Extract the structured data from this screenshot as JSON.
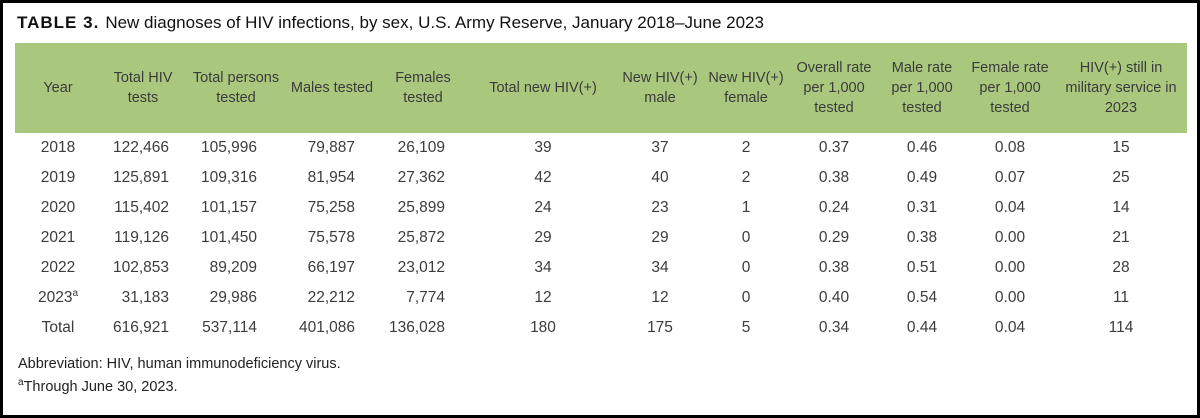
{
  "title": {
    "label": "TABLE 3.",
    "text": "New diagnoses of HIV infections, by sex, U.S. Army Reserve, January 2018–June 2023"
  },
  "colors": {
    "header_bg": "#a9c87e",
    "page_border": "#000000",
    "body_text": "#3c3c3c"
  },
  "table": {
    "columns": [
      "Year",
      "Total HIV tests",
      "Total persons tested",
      "Males tested",
      "Females tested",
      "Total new HIV(+)",
      "New HIV(+) male",
      "New HIV(+) female",
      "Overall rate per 1,000 tested",
      "Male rate per 1,000 tested",
      "Female rate per 1,000 tested",
      "HIV(+) still in military service in 2023"
    ],
    "rows": [
      {
        "cells": [
          "2018",
          "122,466",
          "105,996",
          "79,887",
          "26,109",
          "39",
          "37",
          "2",
          "0.37",
          "0.46",
          "0.08",
          "15"
        ]
      },
      {
        "cells": [
          "2019",
          "125,891",
          "109,316",
          "81,954",
          "27,362",
          "42",
          "40",
          "2",
          "0.38",
          "0.49",
          "0.07",
          "25"
        ]
      },
      {
        "cells": [
          "2020",
          "115,402",
          "101,157",
          "75,258",
          "25,899",
          "24",
          "23",
          "1",
          "0.24",
          "0.31",
          "0.04",
          "14"
        ]
      },
      {
        "cells": [
          "2021",
          "119,126",
          "101,450",
          "75,578",
          "25,872",
          "29",
          "29",
          "0",
          "0.29",
          "0.38",
          "0.00",
          "21"
        ]
      },
      {
        "cells": [
          "2022",
          "102,853",
          "89,209",
          "66,197",
          "23,012",
          "34",
          "34",
          "0",
          "0.38",
          "0.51",
          "0.00",
          "28"
        ]
      },
      {
        "cells": [
          "2023",
          "31,183",
          "29,986",
          "22,212",
          "7,774",
          "12",
          "12",
          "0",
          "0.40",
          "0.54",
          "0.00",
          "11"
        ],
        "year_sup": "a"
      },
      {
        "cells": [
          "Total",
          "616,921",
          "537,114",
          "401,086",
          "136,028",
          "180",
          "175",
          "5",
          "0.34",
          "0.44",
          "0.04",
          "114"
        ]
      }
    ]
  },
  "footnotes": {
    "abbreviation": "Abbreviation: HIV, human immunodeficiency virus.",
    "note_sup": "a",
    "note_text": "Through June 30, 2023."
  }
}
